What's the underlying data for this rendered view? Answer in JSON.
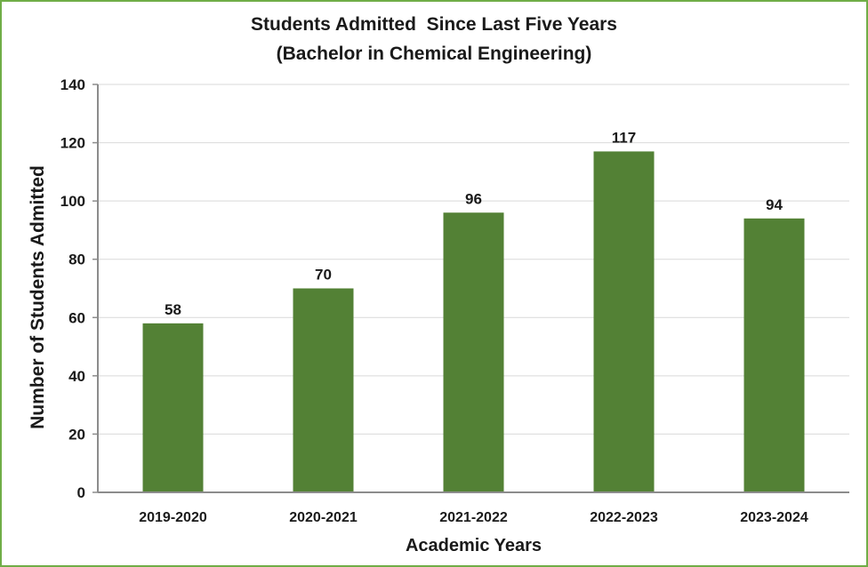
{
  "chart_data": {
    "type": "bar",
    "title": "Students Admitted  Since Last Five Years",
    "subtitle": "(Bachelor in Chemical Engineering)",
    "xlabel": "Academic Years",
    "ylabel": "Number of Students Admitted",
    "categories": [
      "2019-2020",
      "2020-2021",
      "2021-2022",
      "2022-2023",
      "2023-2024"
    ],
    "values": [
      58,
      70,
      96,
      117,
      94
    ],
    "data_labels": [
      "58",
      "70",
      "96",
      "117",
      "94"
    ],
    "ylim": [
      0,
      140
    ],
    "yticks": [
      0,
      20,
      40,
      60,
      80,
      100,
      120,
      140
    ],
    "ytick_labels": [
      "0",
      "20",
      "40",
      "60",
      "80",
      "100",
      "120",
      "140"
    ],
    "grid": true,
    "bar_color": "#538135",
    "border_color": "#70ad47"
  }
}
